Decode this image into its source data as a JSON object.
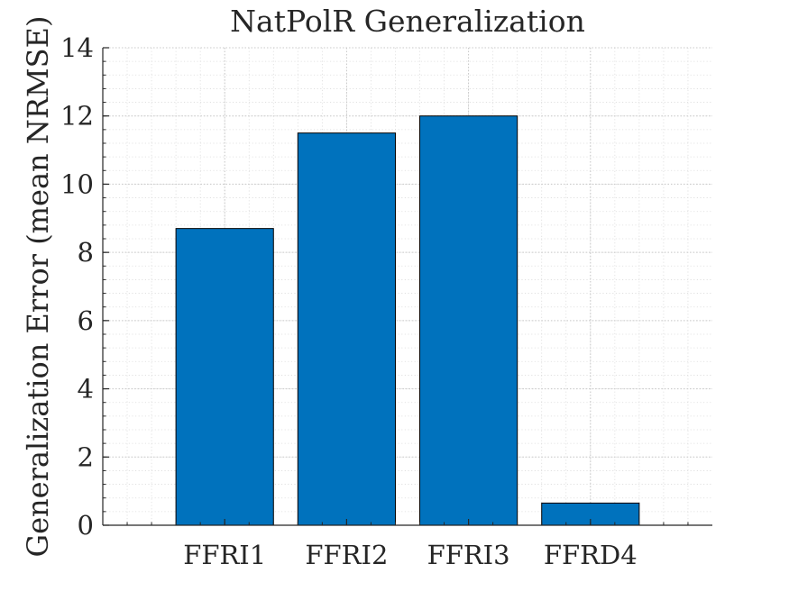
{
  "chart_data": {
    "type": "bar",
    "title": "NatPolR Generalization",
    "xlabel": "",
    "ylabel": "Generalization Error (mean NRMSE)",
    "categories": [
      "FFRI1",
      "FFRI2",
      "FFRI3",
      "FFRD4"
    ],
    "values": [
      8.7,
      11.5,
      12.0,
      0.65
    ],
    "ylim": [
      0,
      14
    ],
    "yticks": [
      0,
      2,
      4,
      6,
      8,
      10,
      12,
      14
    ],
    "ytick_labels": [
      "0",
      "2",
      "4",
      "6",
      "8",
      "10",
      "12",
      "14"
    ],
    "grid": true,
    "minor_grid": true,
    "legend": "none",
    "bar_color": "#0072BD"
  }
}
